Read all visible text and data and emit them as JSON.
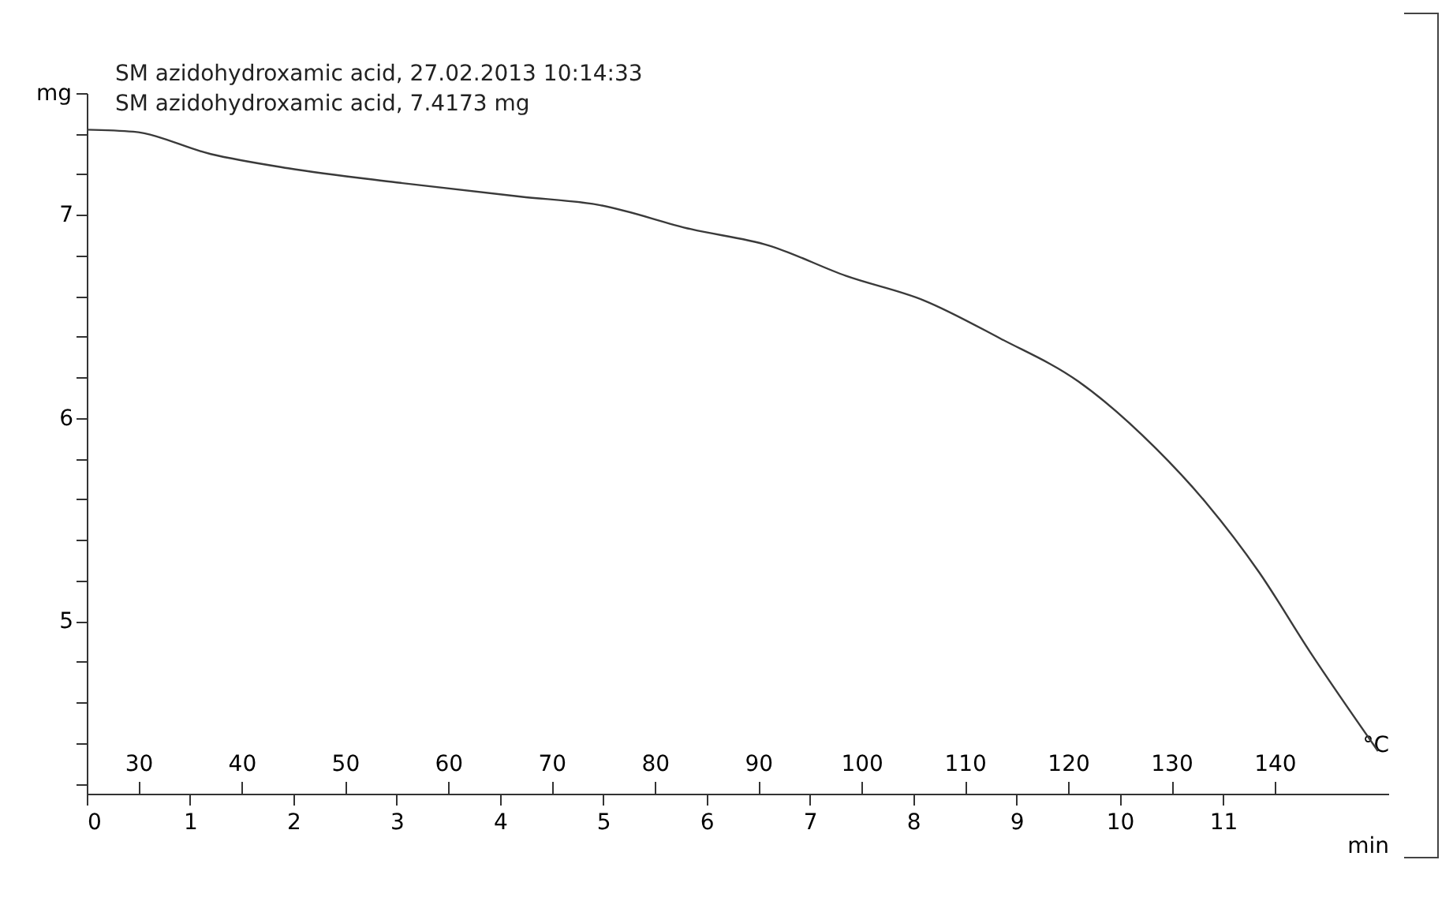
{
  "chart_data": {
    "type": "line",
    "ylabel": "mg",
    "xlabel": "min",
    "x2label": "°C",
    "annotations": [
      "SM azidohydroxamic acid, 27.02.2013 10:14:33",
      "SM azidohydroxamic acid, 7.4173 mg"
    ],
    "x": [
      0,
      0.45,
      1.2,
      1.95,
      3.0,
      4.2,
      4.95,
      5.85,
      6.6,
      7.35,
      8.1,
      8.85,
      9.6,
      10.35,
      10.84,
      11.35,
      11.84,
      12.5
    ],
    "series": [
      {
        "color": "#3a3a3a",
        "values": [
          7.42,
          7.41,
          7.3,
          7.23,
          7.16,
          7.09,
          7.05,
          6.93,
          6.85,
          6.7,
          6.58,
          6.39,
          6.18,
          5.85,
          5.58,
          5.24,
          4.85,
          4.36
        ]
      }
    ],
    "xlim": [
      0,
      12.6
    ],
    "xticks": [
      0,
      1,
      2,
      3,
      4,
      5,
      6,
      7,
      8,
      9,
      10,
      11
    ],
    "x2lim": [
      25,
      151
    ],
    "x2ticks": [
      30,
      40,
      50,
      60,
      70,
      80,
      90,
      100,
      110,
      120,
      130,
      140
    ],
    "ylim": [
      4.15,
      7.6
    ],
    "yticks": [
      {
        "value": 4.2,
        "label": null
      },
      {
        "value": 4.4,
        "label": null
      },
      {
        "value": 4.6,
        "label": null
      },
      {
        "value": 4.8,
        "label": null
      },
      5,
      {
        "value": 5.2,
        "label": null
      },
      {
        "value": 5.4,
        "label": null
      },
      {
        "value": 5.6,
        "label": null
      },
      {
        "value": 5.8,
        "label": null
      },
      6,
      {
        "value": 6.2,
        "label": null
      },
      {
        "value": 6.4,
        "label": null
      },
      {
        "value": 6.6,
        "label": null
      },
      {
        "value": 6.8,
        "label": null
      },
      7,
      {
        "value": 7.2,
        "label": null
      },
      {
        "value": 7.4,
        "label": null
      },
      {
        "value": 7.6,
        "label": null
      }
    ],
    "grid": false,
    "marker": "none",
    "line_style": "solid"
  }
}
